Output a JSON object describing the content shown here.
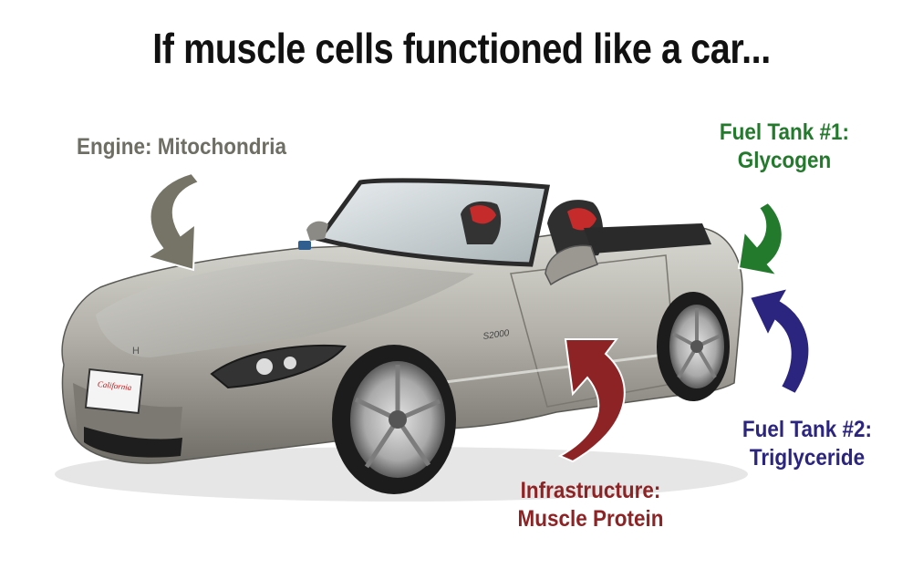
{
  "title": "If muscle cells functioned like a car...",
  "labels": {
    "engine": {
      "text": "Engine: Mitochondria",
      "color": "#6e6e64"
    },
    "fuel_tank_1": {
      "lines": [
        "Fuel Tank #1:",
        "Glycogen"
      ],
      "color": "#237a2c"
    },
    "fuel_tank_2": {
      "lines": [
        "Fuel Tank #2:",
        "Triglyceride"
      ],
      "color": "#2b257f"
    },
    "infrastructure": {
      "lines": [
        "Infrastructure:",
        "Muscle Protein"
      ],
      "color": "#8e2325"
    }
  },
  "image": {
    "subject": "silver convertible sports car",
    "plate_text": "California",
    "badge_text": "S2000"
  }
}
